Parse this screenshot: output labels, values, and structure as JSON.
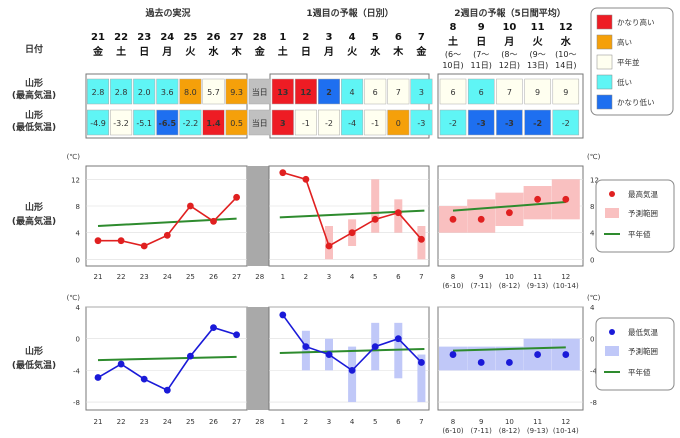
{
  "header": {
    "date_label": "日付",
    "past_label": "過去の実況",
    "week1_label": "1週目の予報（日別）",
    "week2_label": "2週目の予報（5日間平均）"
  },
  "row_labels": {
    "max_top": "山形",
    "max_bottom": "(最高気温)",
    "min_top": "山形",
    "min_bottom": "(最低気温)"
  },
  "days": [
    {
      "d": "21",
      "w": "金"
    },
    {
      "d": "22",
      "w": "土"
    },
    {
      "d": "23",
      "w": "日"
    },
    {
      "d": "24",
      "w": "月"
    },
    {
      "d": "25",
      "w": "火"
    },
    {
      "d": "26",
      "w": "水"
    },
    {
      "d": "27",
      "w": "木"
    },
    {
      "d": "28",
      "w": "金"
    },
    {
      "d": "1",
      "w": "土"
    },
    {
      "d": "2",
      "w": "日"
    },
    {
      "d": "3",
      "w": "月"
    },
    {
      "d": "4",
      "w": "火"
    },
    {
      "d": "5",
      "w": "水"
    },
    {
      "d": "6",
      "w": "木"
    },
    {
      "d": "7",
      "w": "金"
    }
  ],
  "week2_days": [
    {
      "d": "8",
      "w": "土",
      "r1": "(6～",
      "r2": "10日)"
    },
    {
      "d": "9",
      "w": "日",
      "r1": "(7～",
      "r2": "11日)"
    },
    {
      "d": "10",
      "w": "月",
      "r1": "(8～",
      "r2": "12日)"
    },
    {
      "d": "11",
      "w": "火",
      "r1": "(9～",
      "r2": "13日)"
    },
    {
      "d": "12",
      "w": "水",
      "r1": "(10～",
      "r2": "14日)"
    }
  ],
  "table": {
    "max_cells": [
      "2.8",
      "2.8",
      "2.0",
      "3.6",
      "8.0",
      "5.7",
      "9.3",
      "当日",
      "13",
      "12",
      "2",
      "4",
      "6",
      "7",
      "3"
    ],
    "min_cells": [
      "-4.9",
      "-3.2",
      "-5.1",
      "-6.5",
      "-2.2",
      "1.4",
      "0.5",
      "当日",
      "3",
      "-1",
      "-2",
      "-4",
      "-1",
      "0",
      "-3"
    ],
    "max_w2": [
      "6",
      "6",
      "7",
      "9",
      "9"
    ],
    "min_w2": [
      "-2",
      "-3",
      "-3",
      "-2",
      "-2"
    ],
    "max_colors": [
      "#5ff5f5",
      "#5ff5f5",
      "#5ff5f5",
      "#5ff5f5",
      "#f5a00a",
      "#fffff0",
      "#f5a00a",
      "#c0c0c0",
      "#ee1c24",
      "#ee1c24",
      "#1e6ff0",
      "#5ff5f5",
      "#fffff0",
      "#fffff0",
      "#5ff5f5"
    ],
    "min_colors": [
      "#5ff5f5",
      "#fffff0",
      "#5ff5f5",
      "#1e6ff0",
      "#5ff5f5",
      "#ee1c24",
      "#f5a00a",
      "#c0c0c0",
      "#ee1c24",
      "#fffff0",
      "#fffff0",
      "#5ff5f5",
      "#fffff0",
      "#f5a00a",
      "#5ff5f5"
    ],
    "max_w2_colors": [
      "#fffff0",
      "#5ff5f5",
      "#fffff0",
      "#fffff0",
      "#fffff0"
    ],
    "min_w2_colors": [
      "#5ff5f5",
      "#1e6ff0",
      "#1e6ff0",
      "#1e6ff0",
      "#5ff5f5"
    ]
  },
  "legend_top": [
    {
      "label": "かなり高い",
      "color": "#ee1c24"
    },
    {
      "label": "高い",
      "color": "#f5a00a"
    },
    {
      "label": "平年並",
      "color": "#fffff0"
    },
    {
      "label": "低い",
      "color": "#5ff5f5"
    },
    {
      "label": "かなり低い",
      "color": "#1e6ff0"
    }
  ],
  "chart_data": [
    {
      "type": "line",
      "name": "max",
      "unit": "(℃)",
      "ylim": [
        -1,
        14
      ],
      "yticks": [
        0,
        4,
        8,
        12
      ],
      "x": [
        "21",
        "22",
        "23",
        "24",
        "25",
        "26",
        "27",
        "28",
        "1",
        "2",
        "3",
        "4",
        "5",
        "6",
        "7"
      ],
      "observed": [
        2.8,
        2.8,
        2.0,
        3.6,
        8.0,
        5.7,
        9.3,
        null,
        null,
        null,
        null,
        null,
        null,
        null,
        null
      ],
      "forecast": [
        null,
        null,
        null,
        null,
        null,
        null,
        null,
        null,
        13,
        12,
        2,
        4,
        6,
        7,
        3
      ],
      "range": [
        null,
        null,
        null,
        null,
        null,
        null,
        null,
        null,
        null,
        null,
        [
          0,
          5
        ],
        [
          2,
          6
        ],
        [
          4,
          12
        ],
        [
          4,
          9
        ],
        [
          0,
          5
        ]
      ],
      "normal_past": [
        5.0,
        6.1
      ],
      "normal_week1": [
        6.3,
        7.3
      ],
      "week2": {
        "x": [
          "8",
          "9",
          "10",
          "11",
          "12"
        ],
        "sub": [
          "(6-10)",
          "(7-11)",
          "(8-12)",
          "(9-13)",
          "(10-14)"
        ],
        "values": [
          6,
          6,
          7,
          9,
          9
        ],
        "range": [
          [
            4,
            8
          ],
          [
            4,
            9
          ],
          [
            5,
            10
          ],
          [
            6,
            11
          ],
          [
            6,
            12
          ]
        ],
        "normal": [
          7.3,
          8.6
        ]
      },
      "legend": [
        "最高気温",
        "予測範囲",
        "平年値"
      ],
      "colors": {
        "line": "#e02020",
        "range": "#f9c0c0",
        "normal": "#2e8b2e"
      }
    },
    {
      "type": "line",
      "name": "min",
      "unit": "(℃)",
      "ylim": [
        -9,
        4
      ],
      "yticks": [
        4,
        0,
        -4,
        -8
      ],
      "x": [
        "21",
        "22",
        "23",
        "24",
        "25",
        "26",
        "27",
        "28",
        "1",
        "2",
        "3",
        "4",
        "5",
        "6",
        "7"
      ],
      "observed": [
        -4.9,
        -3.2,
        -5.1,
        -6.5,
        -2.2,
        1.4,
        0.5,
        null,
        null,
        null,
        null,
        null,
        null,
        null,
        null
      ],
      "forecast": [
        null,
        null,
        null,
        null,
        null,
        null,
        null,
        null,
        3,
        -1,
        -2,
        -4,
        -1,
        0,
        -3
      ],
      "range": [
        null,
        null,
        null,
        null,
        null,
        null,
        null,
        null,
        null,
        [
          -4,
          1
        ],
        [
          -4,
          0
        ],
        [
          -8,
          -1
        ],
        [
          -4,
          2
        ],
        [
          -5,
          2
        ],
        [
          -8,
          -2
        ]
      ],
      "normal_past": [
        -2.7,
        -2.3
      ],
      "normal_week1": [
        -1.8,
        -1.3
      ],
      "week2": {
        "x": [
          "8",
          "9",
          "10",
          "11",
          "12"
        ],
        "sub": [
          "(6-10)",
          "(7-11)",
          "(8-12)",
          "(9-13)",
          "(10-14)"
        ],
        "values": [
          -2,
          -3,
          -3,
          -2,
          -2
        ],
        "range": [
          [
            -4,
            -1
          ],
          [
            -4,
            -1
          ],
          [
            -4,
            -1
          ],
          [
            -4,
            0
          ],
          [
            -4,
            0
          ]
        ],
        "normal": [
          -1.5,
          -1.1
        ]
      },
      "legend": [
        "最低気温",
        "予測範囲",
        "平年値"
      ],
      "colors": {
        "line": "#1a1ad8",
        "range": "#c0c8f8",
        "normal": "#2e8b2e"
      }
    }
  ]
}
